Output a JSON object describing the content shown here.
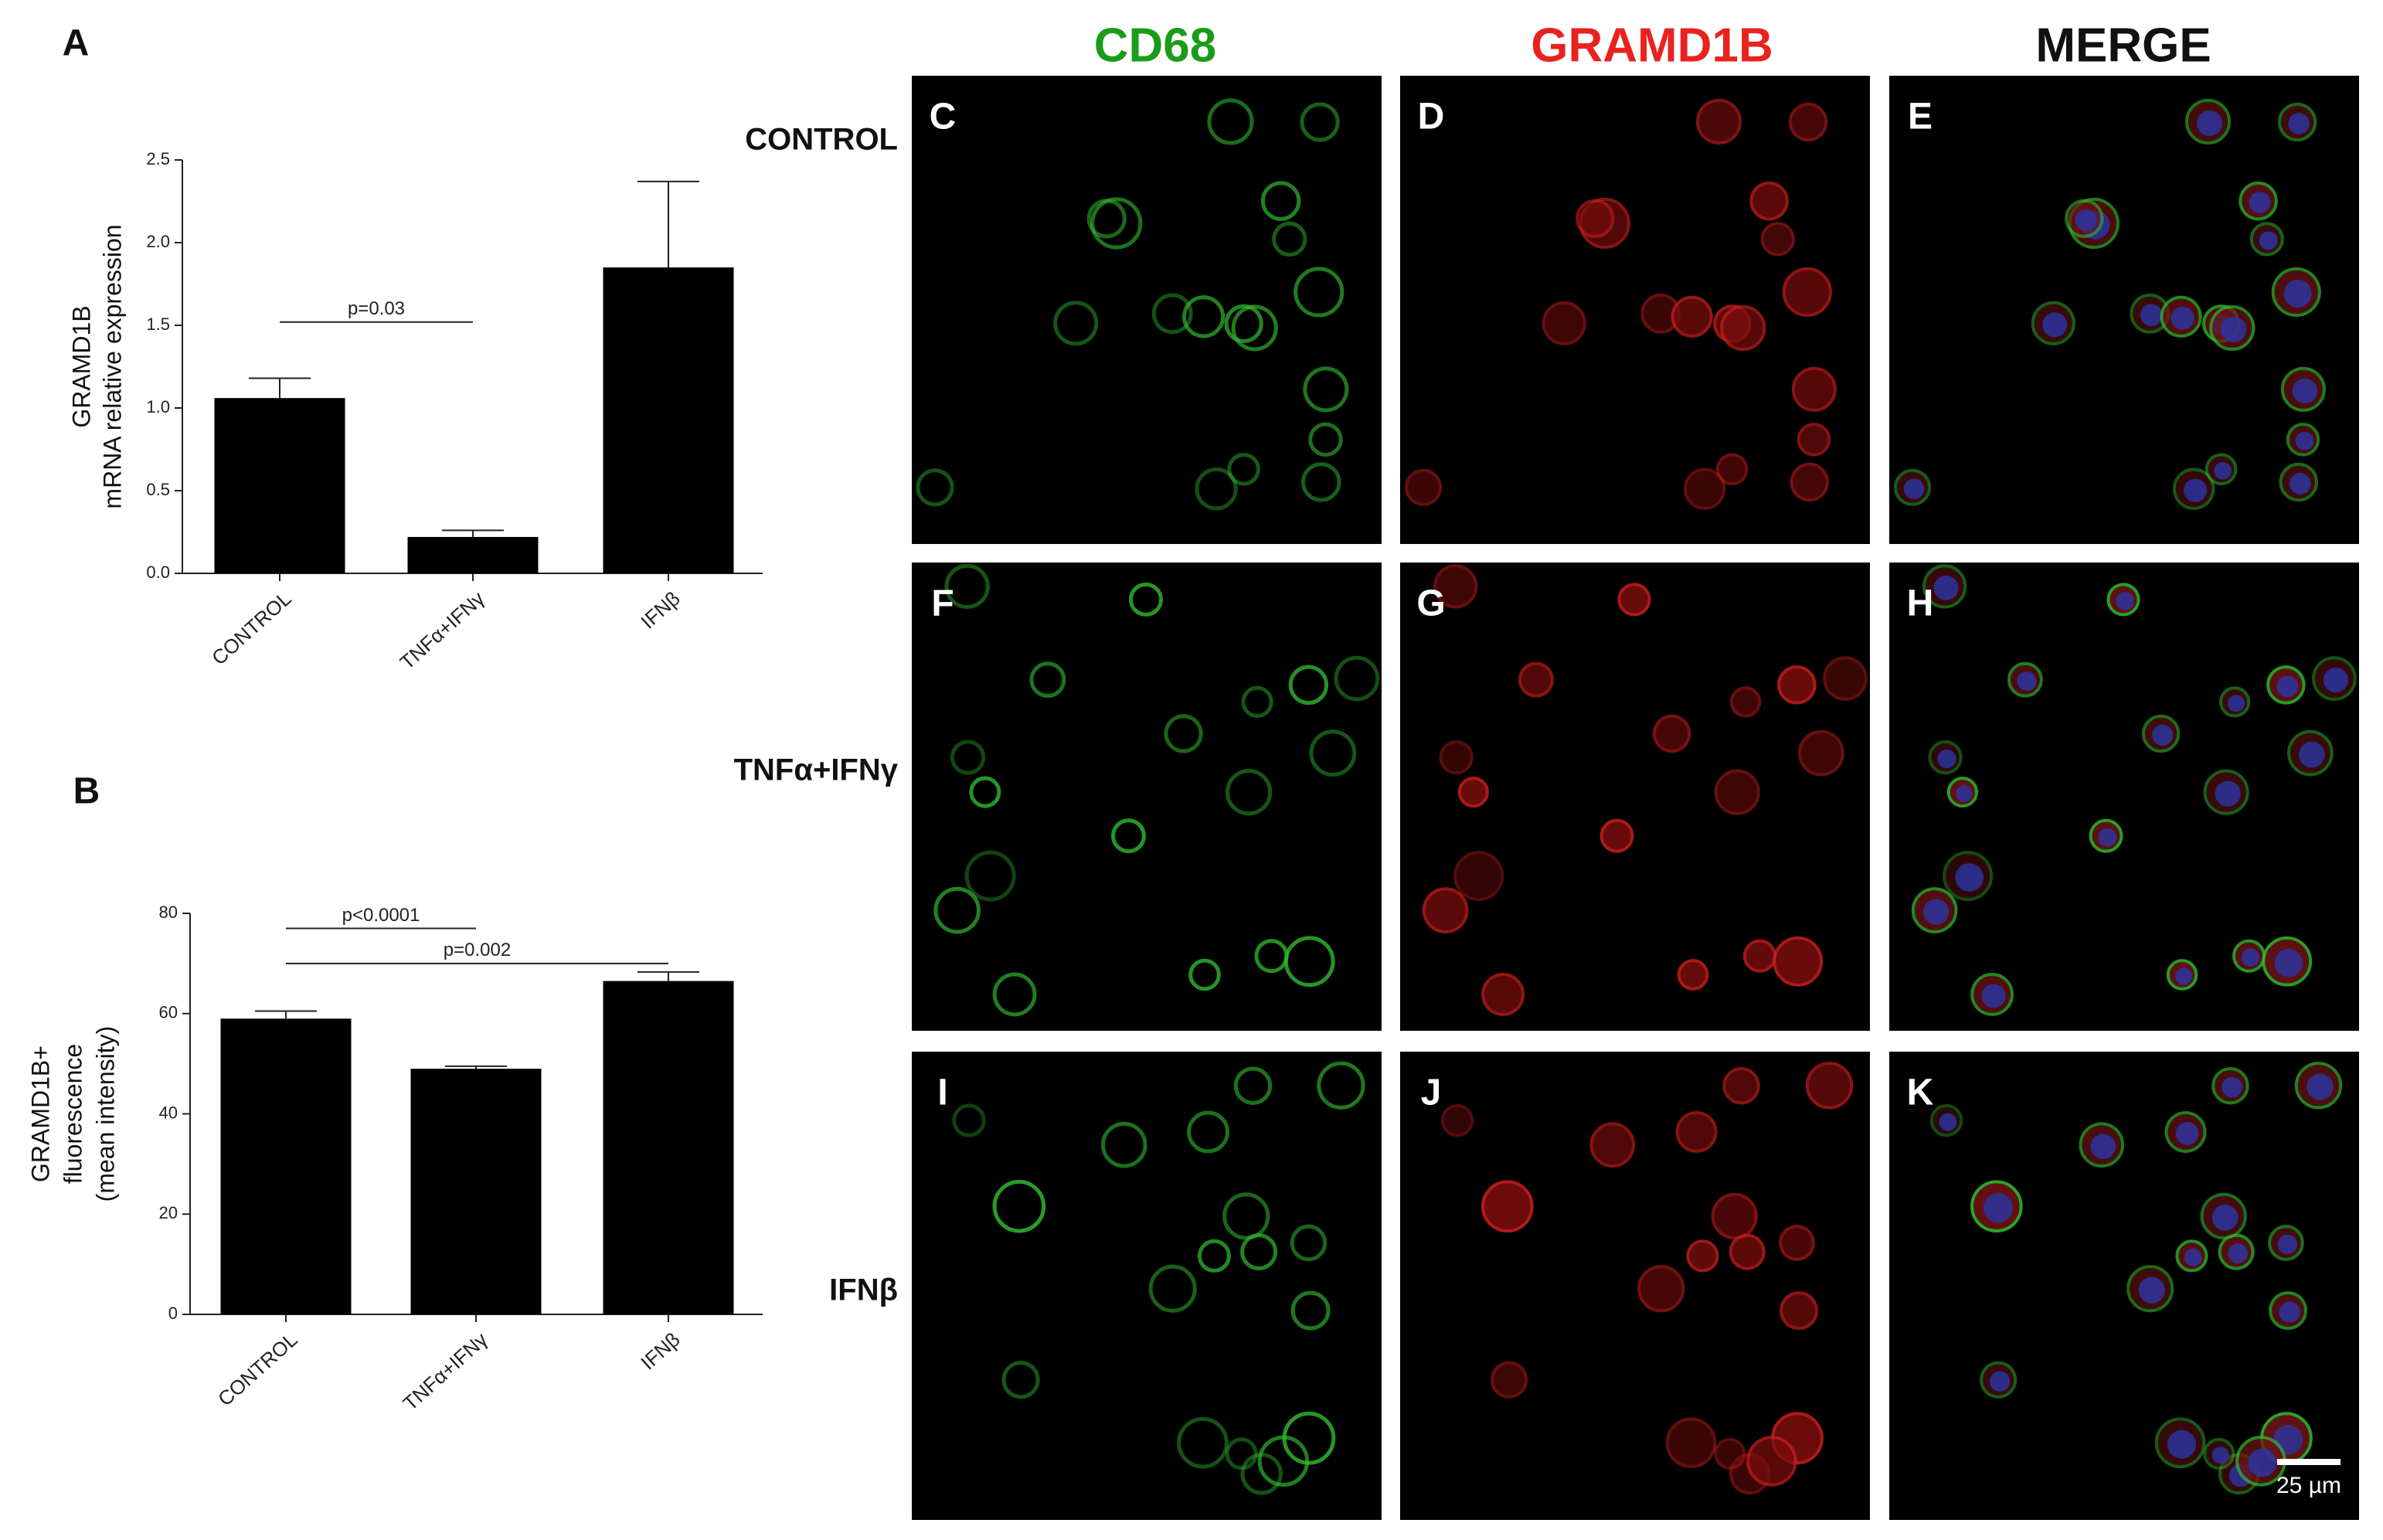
{
  "chart_data": [
    {
      "type": "bar",
      "panel": "A",
      "ylabel": [
        "GRAMD1B",
        "mRNA relative expression"
      ],
      "categories": [
        "CONTROL",
        "TNFα+IFNγ",
        "IFNβ"
      ],
      "values": [
        1.06,
        0.22,
        1.85
      ],
      "errors": [
        0.12,
        0.04,
        0.52
      ],
      "color": "#000000",
      "ylim": [
        0,
        2.5
      ],
      "yticks": [
        {
          "value": 0,
          "label": "0.0"
        },
        0.5,
        {
          "value": 1,
          "label": "1.0"
        },
        1.5,
        {
          "value": 2,
          "label": "2.0"
        },
        2.5
      ],
      "annotations": [
        {
          "text": "p=0.03",
          "from": "CONTROL",
          "to": "TNFα+IFNγ",
          "y": 1.52
        }
      ]
    },
    {
      "type": "bar",
      "panel": "B",
      "ylabel": [
        "GRAMD1B+",
        "fluorescence",
        "(mean intensity)"
      ],
      "categories": [
        "CONTROL",
        "TNFα+IFNγ",
        "IFNβ"
      ],
      "values": [
        59,
        49,
        66.5
      ],
      "errors": [
        1.5,
        0.5,
        1.8
      ],
      "color": "#000000",
      "ylim": [
        0,
        80
      ],
      "yticks": [
        0,
        20,
        40,
        60,
        80
      ],
      "annotations": [
        {
          "text": "p<0.0001",
          "from": "CONTROL",
          "to": "TNFα+IFNγ",
          "y": 77
        },
        {
          "text": "p=0.002",
          "from": "CONTROL",
          "to": "IFNβ",
          "y": 70
        }
      ]
    }
  ],
  "figure": {
    "columns": [
      "CD68",
      "GRAMD1B",
      "MERGE"
    ],
    "rows": [
      "CONTROL",
      "TNFα+IFNγ",
      "IFNβ"
    ],
    "panels": [
      "C",
      "D",
      "E",
      "F",
      "G",
      "H",
      "I",
      "J",
      "K"
    ],
    "scale_bar": "25 µm"
  }
}
